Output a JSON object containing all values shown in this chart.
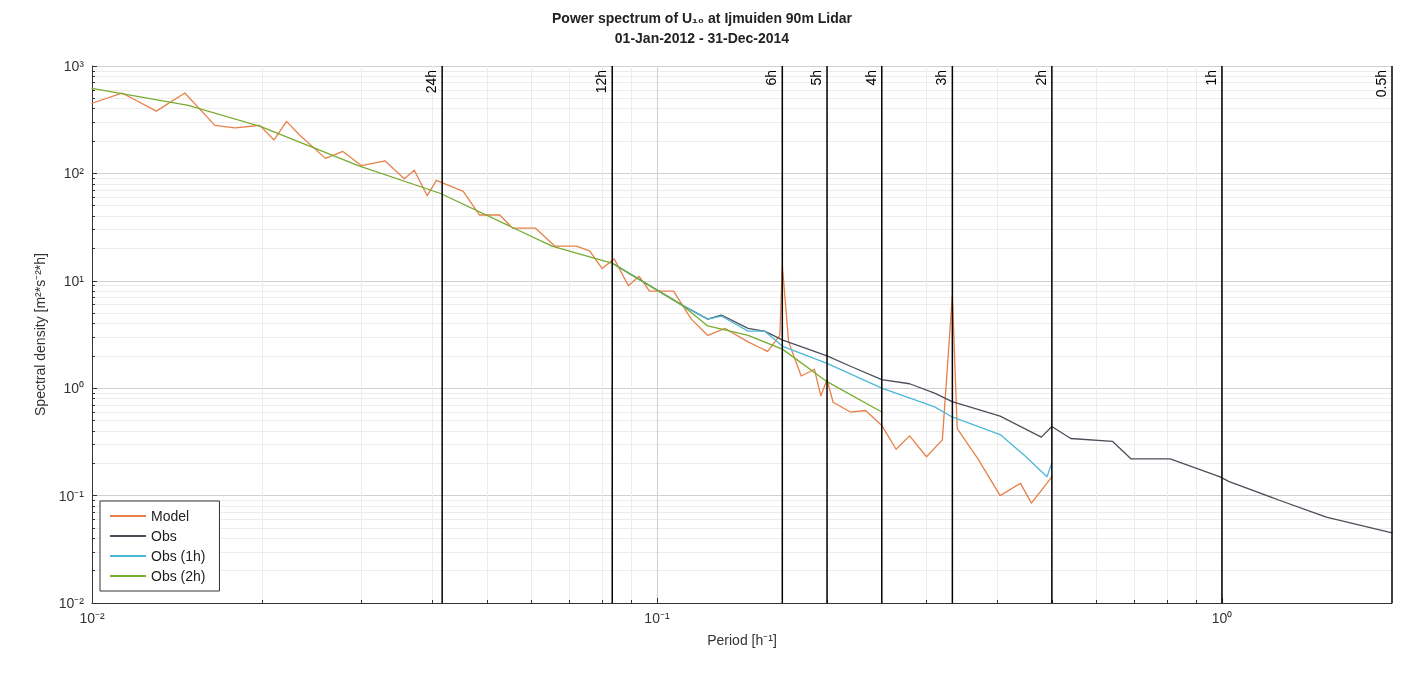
{
  "chart_data": {
    "type": "line",
    "title": "Power spectrum of U₁₀ at Ijmuiden 90m Lidar",
    "subtitle": "01-Jan-2012 - 31-Dec-2014",
    "xlabel": "Period [h⁻¹]",
    "ylabel": "Spectral density [m²*s⁻²*h]",
    "log": "xy",
    "grid": true,
    "legend": "bottom left",
    "marker": "none",
    "line_style": "solid",
    "xlim": [
      0.01,
      2
    ],
    "ylim": [
      0.01,
      1000
    ],
    "xticks": [
      {
        "value": 0.01,
        "label": "10⁻²"
      },
      {
        "value": 0.1,
        "label": "10⁻¹"
      },
      {
        "value": 1,
        "label": "10⁰"
      }
    ],
    "yticks": [
      {
        "value": 0.01,
        "label": "10⁻²"
      },
      {
        "value": 0.1,
        "label": "10⁻¹"
      },
      {
        "value": 1,
        "label": "10⁰"
      },
      {
        "value": 10,
        "label": "10¹"
      },
      {
        "value": 100,
        "label": "10²"
      },
      {
        "value": 1000,
        "label": "10³"
      }
    ],
    "ref_lines": [
      {
        "axis": "x",
        "value": 0.041667,
        "label": "24h",
        "color": "#000000"
      },
      {
        "axis": "x",
        "value": 0.083333,
        "label": "12h",
        "color": "#000000"
      },
      {
        "axis": "x",
        "value": 0.16667,
        "label": "6h",
        "color": "#000000"
      },
      {
        "axis": "x",
        "value": 0.2,
        "label": "5h",
        "color": "#000000"
      },
      {
        "axis": "x",
        "value": 0.25,
        "label": "4h",
        "color": "#000000"
      },
      {
        "axis": "x",
        "value": 0.33333,
        "label": "3h",
        "color": "#000000"
      },
      {
        "axis": "x",
        "value": 0.5,
        "label": "2h",
        "color": "#000000"
      },
      {
        "axis": "x",
        "value": 1,
        "label": "1h",
        "color": "#000000"
      },
      {
        "axis": "x",
        "value": 2,
        "label": "0.5h",
        "color": "#000000"
      }
    ],
    "series": [
      {
        "name": "Model",
        "color": "#e8804a",
        "x": [
          0.01,
          0.0113,
          0.013,
          0.0146,
          0.0165,
          0.0179,
          0.0198,
          0.021,
          0.0221,
          0.0233,
          0.0259,
          0.0278,
          0.03,
          0.033,
          0.0357,
          0.0372,
          0.0392,
          0.0407,
          0.0454,
          0.0485,
          0.0527,
          0.0555,
          0.0609,
          0.066,
          0.072,
          0.076,
          0.08,
          0.084,
          0.089,
          0.093,
          0.097,
          0.107,
          0.115,
          0.123,
          0.132,
          0.145,
          0.157,
          0.165,
          0.1667,
          0.171,
          0.18,
          0.19,
          0.195,
          0.2,
          0.205,
          0.22,
          0.234,
          0.25,
          0.265,
          0.28,
          0.3,
          0.32,
          0.3333,
          0.34,
          0.37,
          0.405,
          0.44,
          0.46,
          0.49,
          0.5
        ],
        "values": [
          450,
          560,
          380,
          560,
          280,
          265,
          280,
          205,
          305,
          228,
          138,
          160,
          118,
          131,
          89,
          107,
          62,
          86,
          68,
          41,
          41,
          31,
          31,
          21,
          21,
          19,
          13,
          16,
          9,
          11,
          8,
          8,
          4.4,
          3.1,
          3.6,
          2.7,
          2.2,
          3.1,
          13.8,
          2.7,
          1.3,
          1.5,
          0.85,
          1.2,
          0.74,
          0.6,
          0.62,
          0.45,
          0.27,
          0.36,
          0.23,
          0.33,
          7.3,
          0.42,
          0.22,
          0.1,
          0.13,
          0.085,
          0.13,
          0.15
        ]
      },
      {
        "name": "Obs",
        "color": "#4a4f5a",
        "x": [
          0.0835,
          0.111,
          0.123,
          0.13,
          0.145,
          0.155,
          0.167,
          0.2,
          0.22,
          0.25,
          0.28,
          0.31,
          0.333,
          0.405,
          0.479,
          0.5,
          0.54,
          0.64,
          0.69,
          0.81,
          0.99,
          1.03,
          1.26,
          1.53,
          2
        ],
        "values": [
          14.5,
          5.9,
          4.4,
          4.8,
          3.6,
          3.4,
          2.8,
          2.0,
          1.6,
          1.2,
          1.1,
          0.9,
          0.75,
          0.55,
          0.35,
          0.44,
          0.34,
          0.32,
          0.22,
          0.22,
          0.15,
          0.135,
          0.091,
          0.063,
          0.045
        ]
      },
      {
        "name": "Obs (1h)",
        "color": "#4db8d8",
        "x": [
          0.0835,
          0.111,
          0.123,
          0.13,
          0.145,
          0.155,
          0.167,
          0.2,
          0.25,
          0.31,
          0.333,
          0.405,
          0.45,
          0.49,
          0.5
        ],
        "values": [
          14.5,
          5.9,
          4.4,
          4.7,
          3.4,
          3.4,
          2.45,
          1.7,
          1.0,
          0.67,
          0.54,
          0.37,
          0.23,
          0.15,
          0.2
        ]
      },
      {
        "name": "Obs (2h)",
        "color": "#77ac30",
        "x": [
          0.01,
          0.0148,
          0.0198,
          0.0296,
          0.0414,
          0.0652,
          0.0835,
          0.111,
          0.123,
          0.145,
          0.167,
          0.2,
          0.25
        ],
        "values": [
          620,
          430,
          275,
          118,
          65,
          21,
          14.5,
          5.9,
          3.8,
          3.1,
          2.3,
          1.15,
          0.6
        ]
      }
    ]
  }
}
